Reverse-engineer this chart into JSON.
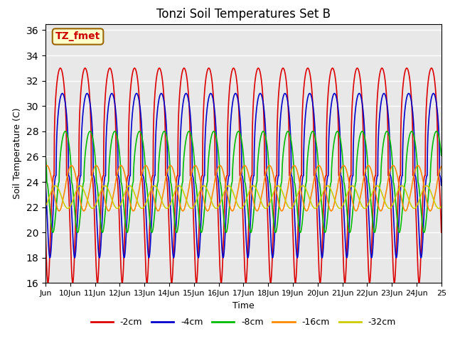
{
  "title": "Tonzi Soil Temperatures Set B",
  "xlabel": "Time",
  "ylabel": "Soil Temperature (C)",
  "annotation_text": "TZ_fmet",
  "annotation_color": "#cc0000",
  "annotation_bg": "#ffffcc",
  "annotation_border": "#996600",
  "ylim": [
    16,
    36.5
  ],
  "xlim_days": [
    9,
    25
  ],
  "x_tick_labels": [
    "Jun",
    "10Jun",
    "11Jun",
    "12Jun",
    "13Jun",
    "14Jun",
    "15Jun",
    "16Jun",
    "17Jun",
    "18Jun",
    "19Jun",
    "20Jun",
    "21Jun",
    "22Jun",
    "23Jun",
    "24Jun",
    "25"
  ],
  "x_tick_positions": [
    9,
    10,
    11,
    12,
    13,
    14,
    15,
    16,
    17,
    18,
    19,
    20,
    21,
    22,
    23,
    24,
    25
  ],
  "series": [
    {
      "label": "-2cm",
      "color": "#dd0000",
      "mean": 24.5,
      "amplitude": 8.5,
      "phase_shift": 0.35,
      "lag": 0.0,
      "sharpness": 3.0
    },
    {
      "label": "-4cm",
      "color": "#0000cc",
      "mean": 24.5,
      "amplitude": 6.5,
      "phase_shift": 0.35,
      "lag": 0.08,
      "sharpness": 2.5
    },
    {
      "label": "-8cm",
      "color": "#00bb00",
      "mean": 24.0,
      "amplitude": 4.0,
      "phase_shift": 0.35,
      "lag": 0.2,
      "sharpness": 1.8
    },
    {
      "label": "-16cm",
      "color": "#ff8800",
      "mean": 23.5,
      "amplitude": 1.8,
      "phase_shift": 0.35,
      "lag": 0.45,
      "sharpness": 1.2
    },
    {
      "label": "-32cm",
      "color": "#cccc00",
      "mean": 22.8,
      "amplitude": 0.9,
      "phase_shift": 0.35,
      "lag": 0.8,
      "sharpness": 1.0
    }
  ],
  "bg_color": "#e8e8e8",
  "grid_color": "#ffffff",
  "linewidth": 1.2,
  "points_per_day": 288
}
